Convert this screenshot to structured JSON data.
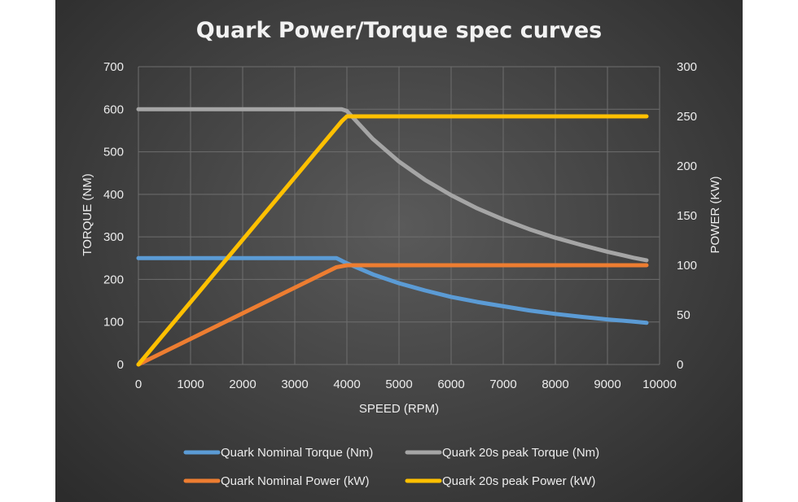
{
  "chart_data": {
    "type": "line",
    "title": "Quark Power/Torque spec curves",
    "xlabel": "SPEED (RPM)",
    "ylabel": "TORQUE (NM)",
    "y2label": "POWER (KW)",
    "xlim": [
      0,
      10000
    ],
    "ylim": [
      0,
      700
    ],
    "y2lim": [
      0,
      300
    ],
    "xticks": [
      0,
      1000,
      2000,
      3000,
      4000,
      5000,
      6000,
      7000,
      8000,
      9000,
      10000
    ],
    "yticks": [
      0,
      100,
      200,
      300,
      400,
      500,
      600,
      700
    ],
    "y2ticks": [
      0,
      50,
      100,
      150,
      200,
      250,
      300
    ],
    "grid": true,
    "legend_position": "bottom",
    "series": [
      {
        "name": "Quark Nominal Torque (Nm)",
        "axis": "left",
        "color": "#5b9bd5",
        "x": [
          0,
          3800,
          4000,
          4500,
          5000,
          5500,
          6000,
          6500,
          7000,
          7500,
          8000,
          8500,
          9000,
          9500,
          9750
        ],
        "y": [
          250,
          250,
          238,
          212,
          191,
          174,
          159,
          147,
          137,
          127,
          119,
          112,
          106,
          101,
          98
        ]
      },
      {
        "name": "Quark 20s peak Torque (Nm)",
        "axis": "left",
        "color": "#a5a5a5",
        "x": [
          0,
          3900,
          4000,
          4500,
          5000,
          5500,
          6000,
          6500,
          7000,
          7500,
          8000,
          8500,
          9000,
          9500,
          9750
        ],
        "y": [
          600,
          600,
          596,
          530,
          477,
          434,
          398,
          367,
          341,
          318,
          298,
          281,
          265,
          251,
          245
        ]
      },
      {
        "name": "Quark Nominal Power (kW)",
        "axis": "right",
        "color": "#ed7d31",
        "x": [
          0,
          3800,
          4000,
          9750
        ],
        "y": [
          0,
          98,
          100,
          100
        ]
      },
      {
        "name": "Quark 20s peak Power (kW)",
        "axis": "right",
        "color": "#ffc000",
        "x": [
          0,
          3900,
          4000,
          9750
        ],
        "y": [
          0,
          245,
          250,
          250
        ]
      }
    ]
  }
}
